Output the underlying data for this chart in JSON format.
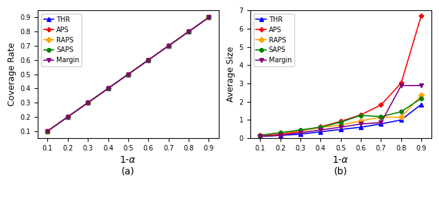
{
  "x": [
    0.1,
    0.2,
    0.3,
    0.4,
    0.5,
    0.6,
    0.7,
    0.8,
    0.9
  ],
  "coverage": {
    "THR": [
      0.1,
      0.2,
      0.3,
      0.4,
      0.5,
      0.6,
      0.7,
      0.8,
      0.9
    ],
    "APS": [
      0.1,
      0.2,
      0.3,
      0.4,
      0.5,
      0.6,
      0.7,
      0.8,
      0.9
    ],
    "RAPS": [
      0.1,
      0.2,
      0.3,
      0.4,
      0.5,
      0.6,
      0.7,
      0.8,
      0.9
    ],
    "SAPS": [
      0.1,
      0.2,
      0.3,
      0.4,
      0.5,
      0.6,
      0.7,
      0.8,
      0.9
    ],
    "Margin": [
      0.1,
      0.2,
      0.3,
      0.4,
      0.5,
      0.6,
      0.7,
      0.8,
      0.9
    ]
  },
  "avg_size": {
    "THR": [
      0.1,
      0.15,
      0.22,
      0.35,
      0.48,
      0.6,
      0.78,
      1.0,
      1.85
    ],
    "APS": [
      0.13,
      0.2,
      0.38,
      0.62,
      0.92,
      1.28,
      1.82,
      3.02,
      6.72
    ],
    "RAPS": [
      0.15,
      0.3,
      0.4,
      0.58,
      0.72,
      0.95,
      1.15,
      1.15,
      2.35
    ],
    "SAPS": [
      0.16,
      0.3,
      0.45,
      0.6,
      0.88,
      1.25,
      1.18,
      1.45,
      2.18
    ],
    "Margin": [
      0.1,
      0.15,
      0.3,
      0.45,
      0.6,
      0.78,
      0.85,
      2.88,
      2.88
    ]
  },
  "colors": {
    "THR": "blue",
    "APS": "red",
    "RAPS": "orange",
    "SAPS": "green",
    "Margin": "purple"
  },
  "markers": {
    "THR": "^",
    "APS": "P",
    "RAPS": "D",
    "SAPS": "o",
    "Margin": "v"
  },
  "ylabel_a": "Coverage Rate",
  "ylabel_b": "Average Size",
  "xlabel": "1-$\\alpha$",
  "label_a": "(a)",
  "label_b": "(b)",
  "ylim_a": [
    0.05,
    0.95
  ],
  "ylim_b": [
    0.0,
    7.0
  ],
  "yticks_a": [
    0.1,
    0.2,
    0.3,
    0.4,
    0.5,
    0.6,
    0.7,
    0.8,
    0.9
  ],
  "yticks_b": [
    0,
    1,
    2,
    3,
    4,
    5,
    6,
    7
  ],
  "xticks": [
    0.1,
    0.2,
    0.3,
    0.4,
    0.5,
    0.6,
    0.7,
    0.8,
    0.9
  ],
  "markersize": 4,
  "linewidth": 1.2,
  "legend_fontsize": 7,
  "tick_fontsize": 7,
  "axis_label_fontsize": 9,
  "xlabel_fontsize": 10,
  "caption_fontsize": 10
}
